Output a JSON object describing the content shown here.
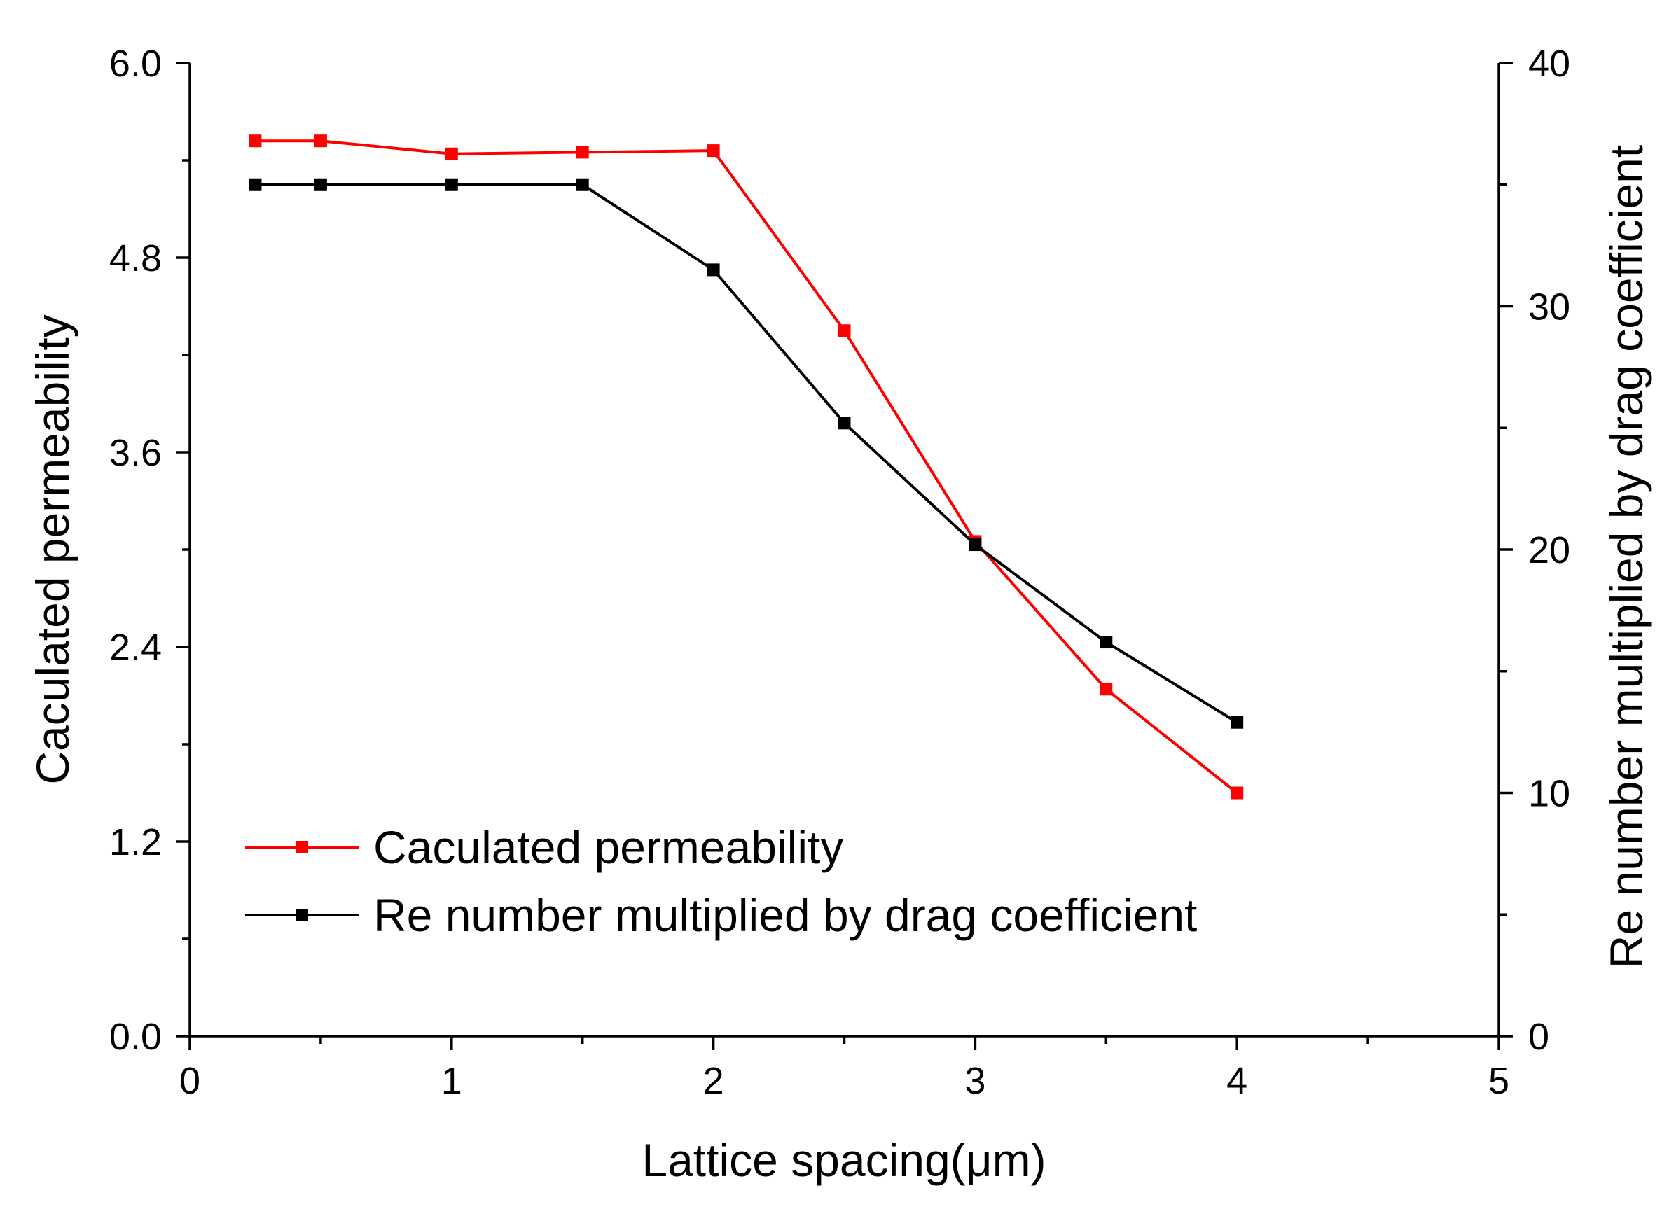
{
  "chart_data": {
    "type": "line",
    "title": "",
    "xlabel": "Lattice spacing(μm)",
    "ylabel_left": "Caculated  permeability",
    "ylabel_right": "Re number multiplied by drag coefficient",
    "xlim": [
      0,
      5
    ],
    "ylim_left": [
      0.0,
      6.0
    ],
    "ylim_right": [
      0,
      40
    ],
    "x_ticks": [
      "0",
      "1",
      "2",
      "3",
      "4",
      "5"
    ],
    "y_left_ticks": [
      "0.0",
      "1.2",
      "2.4",
      "3.6",
      "4.8",
      "6.0"
    ],
    "y_right_ticks": [
      "0",
      "10",
      "20",
      "30",
      "40"
    ],
    "grid": false,
    "legend_position": "bottom-left",
    "series": [
      {
        "name": "Caculated  permeability",
        "axis": "left",
        "color": "#ff0000",
        "marker": "square",
        "x": [
          0.25,
          0.5,
          1.0,
          1.5,
          2.0,
          2.5,
          3.0,
          3.5,
          4.0
        ],
        "values": [
          5.52,
          5.52,
          5.44,
          5.45,
          5.46,
          4.35,
          3.05,
          2.14,
          1.5
        ]
      },
      {
        "name": "Re number multiplied by drag coefficient",
        "axis": "right",
        "color": "#000000",
        "marker": "square",
        "x": [
          0.25,
          0.5,
          1.0,
          1.5,
          2.0,
          2.5,
          3.0,
          3.5,
          4.0
        ],
        "values": [
          35.0,
          35.0,
          35.0,
          35.0,
          31.5,
          25.2,
          20.2,
          16.2,
          12.9
        ]
      }
    ]
  }
}
